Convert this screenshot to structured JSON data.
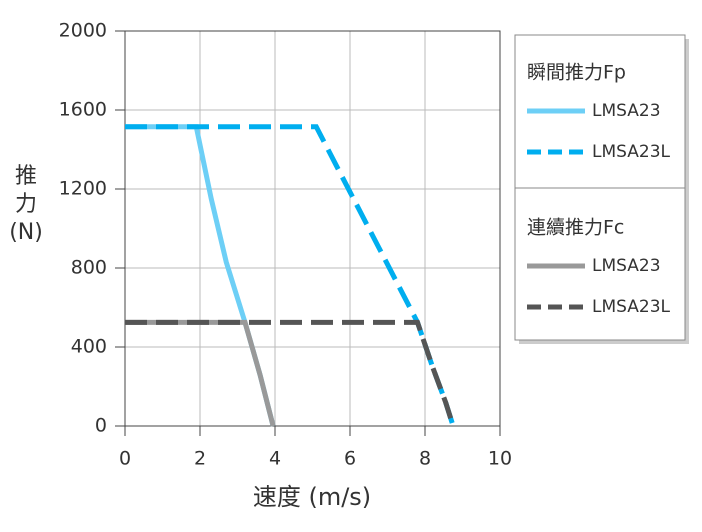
{
  "chart_data": {
    "type": "line",
    "xlabel": "速度 (m/s)",
    "ylabel": "推力(N)",
    "xlim": [
      0,
      10
    ],
    "xticks": [
      0,
      2,
      4,
      6,
      8,
      10
    ],
    "ylim": [
      0,
      2000
    ],
    "yticks": [
      0,
      400,
      800,
      1200,
      1600,
      2000
    ],
    "grid": true,
    "legend": "right",
    "legend_titles": [
      "瞬間推力Fp",
      "連續推力Fc"
    ],
    "series": [
      {
        "name": "LMSA23",
        "color": "#6dcff6",
        "dashed": false,
        "x": [
          0,
          1.9,
          2.3,
          2.7,
          3.2,
          3.6,
          3.95
        ],
        "values": [
          1515,
          1515,
          1150,
          830,
          525,
          260,
          0
        ]
      },
      {
        "name": "LMSA23L",
        "color": "#00aeef",
        "dashed": true,
        "x": [
          0,
          5.1,
          7.8,
          8.2,
          8.55,
          8.75
        ],
        "values": [
          1515,
          1515,
          525,
          300,
          120,
          0
        ]
      },
      {
        "name": "LMSA23",
        "color": "#999999",
        "dashed": false,
        "x": [
          0,
          3.2,
          3.6,
          3.95
        ],
        "values": [
          525,
          525,
          260,
          0
        ]
      },
      {
        "name": "LMSA23L",
        "color": "#555555",
        "dashed": true,
        "x": [
          0,
          7.8,
          8.2,
          8.55,
          8.75
        ],
        "values": [
          525,
          525,
          300,
          120,
          0
        ]
      }
    ]
  }
}
